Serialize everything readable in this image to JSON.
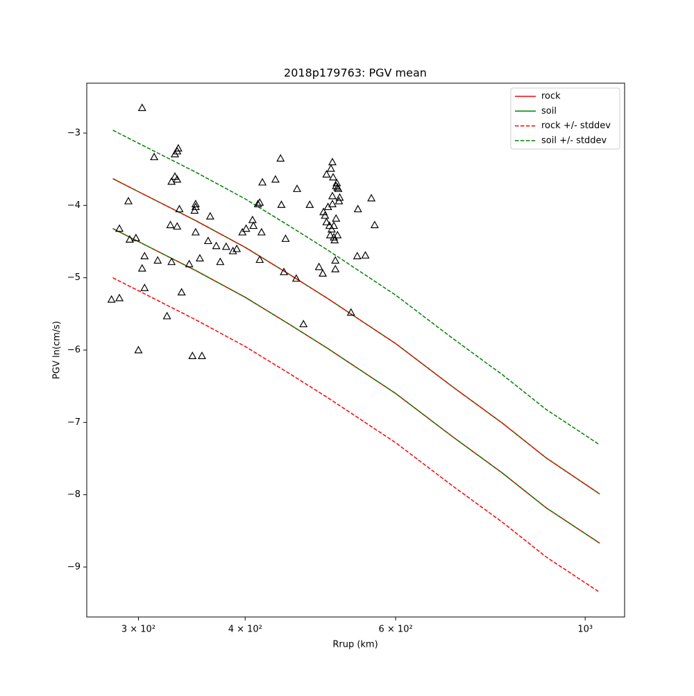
{
  "chart_data": {
    "type": "line",
    "title": "2018p179763: PGV mean",
    "xlabel": "Rrup (km)",
    "ylabel": "PGV ln(cm/s)",
    "xscale": "log",
    "x": [
      280,
      300,
      350,
      400,
      450,
      500,
      600,
      700,
      800,
      900,
      1040
    ],
    "series": [
      {
        "name": "rock",
        "color": "#ff0000",
        "style": "solid",
        "values": [
          -4.32,
          -4.5,
          -4.9,
          -5.27,
          -5.64,
          -5.98,
          -6.6,
          -7.2,
          -7.7,
          -8.18,
          -8.67
        ]
      },
      {
        "name": "soil",
        "color": "#008000",
        "style": "solid",
        "values": [
          -3.63,
          -3.81,
          -4.21,
          -4.58,
          -4.95,
          -5.29,
          -5.91,
          -6.51,
          -7.01,
          -7.49,
          -7.99
        ]
      },
      {
        "name": "rock +/- stddev",
        "color": "#ff0000",
        "style": "dashed",
        "upper": [
          -3.63,
          -3.81,
          -4.21,
          -4.58,
          -4.95,
          -5.29,
          -5.91,
          -6.51,
          -7.01,
          -7.49,
          -7.99
        ],
        "lower": [
          -5.0,
          -5.18,
          -5.58,
          -5.95,
          -6.32,
          -6.66,
          -7.28,
          -7.88,
          -8.38,
          -8.86,
          -9.35
        ]
      },
      {
        "name": "soil +/- stddev",
        "color": "#008000",
        "style": "dashed",
        "upper": [
          -2.96,
          -3.14,
          -3.54,
          -3.91,
          -4.28,
          -4.62,
          -5.24,
          -5.84,
          -6.34,
          -6.82,
          -7.31
        ],
        "lower": [
          -4.32,
          -4.5,
          -4.9,
          -5.27,
          -5.64,
          -5.98,
          -6.6,
          -7.2,
          -7.7,
          -8.18,
          -8.67
        ]
      }
    ],
    "points": {
      "color": "#000000",
      "marker": "triangle",
      "x": [
        303,
        313,
        292,
        285,
        293,
        298,
        305,
        303,
        316,
        305,
        279,
        285,
        324,
        300,
        331,
        333,
        334,
        328,
        331,
        333,
        335,
        327,
        333,
        328,
        344,
        337,
        350,
        350,
        349,
        350,
        354,
        362,
        364,
        370,
        374,
        380,
        387,
        391,
        397,
        401,
        408,
        409,
        414,
        416,
        419,
        418,
        416,
        434,
        440,
        441,
        446,
        444,
        459,
        460,
        476,
        468,
        488,
        493,
        494,
        496,
        498,
        500,
        498,
        502,
        504,
        506,
        506,
        503,
        505,
        507,
        506,
        508,
        509,
        508,
        510,
        510,
        511,
        513,
        512,
        513,
        511,
        514,
        516,
        515,
        532,
        542,
        541,
        553,
        562,
        567,
        347,
        356
      ],
      "y": [
        -2.65,
        -3.33,
        -3.94,
        -4.32,
        -4.47,
        -4.45,
        -4.7,
        -4.87,
        -4.76,
        -5.14,
        -5.3,
        -5.28,
        -5.53,
        -6.0,
        -3.29,
        -3.25,
        -3.21,
        -3.67,
        -3.6,
        -3.64,
        -4.05,
        -4.27,
        -4.29,
        -4.78,
        -4.81,
        -5.2,
        -3.98,
        -4.02,
        -4.07,
        -4.37,
        -4.73,
        -4.49,
        -4.15,
        -4.56,
        -4.78,
        -4.57,
        -4.63,
        -4.6,
        -4.37,
        -4.32,
        -4.2,
        -4.28,
        -3.98,
        -3.96,
        -3.68,
        -4.37,
        -4.75,
        -3.64,
        -3.35,
        -3.99,
        -4.46,
        -4.92,
        -5.01,
        -3.77,
        -3.99,
        -5.64,
        -4.85,
        -4.94,
        -4.09,
        -4.14,
        -3.57,
        -4.02,
        -4.23,
        -4.28,
        -3.49,
        -3.4,
        -3.87,
        -4.41,
        -4.33,
        -3.61,
        -3.98,
        -4.28,
        -4.48,
        -4.44,
        -4.76,
        -4.88,
        -4.18,
        -4.41,
        -3.69,
        -3.75,
        -3.73,
        -3.77,
        -3.89,
        -3.94,
        -5.48,
        -4.05,
        -4.7,
        -4.69,
        -3.9,
        -4.27,
        -6.08,
        -6.08
      ]
    },
    "xlim": [
      261,
      1112
    ],
    "ylim": [
      -9.69,
      -2.31
    ],
    "xticks": [
      {
        "value": 300,
        "label": "3 × 10²"
      },
      {
        "value": 400,
        "label": "4 × 10²"
      },
      {
        "value": 600,
        "label": "6 × 10²"
      },
      {
        "value": 1000,
        "label": "10³"
      }
    ],
    "yticks": [
      {
        "value": -9,
        "label": "−9"
      },
      {
        "value": -8,
        "label": "−8"
      },
      {
        "value": -7,
        "label": "−7"
      },
      {
        "value": -6,
        "label": "−6"
      },
      {
        "value": -5,
        "label": "−5"
      },
      {
        "value": -4,
        "label": "−4"
      },
      {
        "value": -3,
        "label": "−3"
      }
    ],
    "legend": "upper right",
    "grid": false
  }
}
